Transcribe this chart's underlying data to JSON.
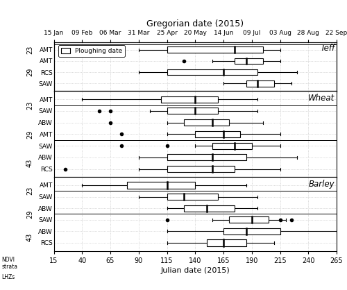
{
  "title_top": "Gregorian date (2015)",
  "xlabel": "Julian date (2015)",
  "xlim": [
    15,
    265
  ],
  "xticks": [
    15,
    40,
    65,
    90,
    115,
    140,
    165,
    190,
    215,
    240,
    265
  ],
  "gregorian_labels": [
    "15 Jan",
    "09 Feb",
    "06 Mar",
    "31 Mar",
    "25 Apr",
    "20 May",
    "14 Jun",
    "09 Jul",
    "03 Aug",
    "28 Aug",
    "22 Sep"
  ],
  "sections": [
    {
      "label": "Teff",
      "rows": [
        {
          "strata": "29",
          "lhz": "SAW",
          "whislo": 165,
          "q1": 185,
          "med": 195,
          "q3": 210,
          "whishi": 225,
          "fliers": []
        },
        {
          "strata": "29",
          "lhz": "RCS",
          "whislo": 90,
          "q1": 115,
          "med": 165,
          "q3": 195,
          "whishi": 230,
          "fliers": []
        },
        {
          "strata": "29",
          "lhz": "AMT",
          "whislo": 155,
          "q1": 175,
          "med": 185,
          "q3": 200,
          "whishi": 215,
          "fliers": [
            130
          ]
        },
        {
          "strata": "23",
          "lhz": "AMT",
          "whislo": 90,
          "q1": 115,
          "med": 175,
          "q3": 200,
          "whishi": 215,
          "fliers": []
        }
      ]
    },
    {
      "label": "Wheat",
      "rows": [
        {
          "strata": "43",
          "lhz": "RCS",
          "whislo": 90,
          "q1": 115,
          "med": 155,
          "q3": 175,
          "whishi": 215,
          "fliers": [
            25
          ]
        },
        {
          "strata": "43",
          "lhz": "ABW",
          "whislo": 90,
          "q1": 115,
          "med": 155,
          "q3": 185,
          "whishi": 230,
          "fliers": []
        },
        {
          "strata": "29",
          "lhz": "SAW",
          "whislo": 140,
          "q1": 155,
          "med": 175,
          "q3": 190,
          "whishi": 215,
          "fliers": [
            75,
            115
          ]
        },
        {
          "strata": "29",
          "lhz": "AMT",
          "whislo": 115,
          "q1": 140,
          "med": 165,
          "q3": 180,
          "whishi": 215,
          "fliers": [
            75
          ]
        },
        {
          "strata": "29",
          "lhz": "ABW",
          "whislo": 115,
          "q1": 130,
          "med": 155,
          "q3": 170,
          "whishi": 200,
          "fliers": [
            65
          ]
        },
        {
          "strata": "23",
          "lhz": "SAW",
          "whislo": 100,
          "q1": 115,
          "med": 140,
          "q3": 160,
          "whishi": 195,
          "fliers": [
            55,
            65
          ]
        },
        {
          "strata": "23",
          "lhz": "AMT",
          "whislo": 40,
          "q1": 110,
          "med": 140,
          "q3": 160,
          "whishi": 195,
          "fliers": []
        }
      ]
    },
    {
      "label": "Barley",
      "rows": [
        {
          "strata": "43",
          "lhz": "RCS",
          "whislo": 115,
          "q1": 150,
          "med": 165,
          "q3": 185,
          "whishi": 210,
          "fliers": []
        },
        {
          "strata": "43",
          "lhz": "ABW",
          "whislo": 115,
          "q1": 165,
          "med": 185,
          "q3": 215,
          "whishi": 265,
          "fliers": []
        },
        {
          "strata": "29",
          "lhz": "SAW",
          "whislo": 155,
          "q1": 170,
          "med": 190,
          "q3": 205,
          "whishi": 220,
          "fliers": [
            115,
            215,
            225
          ]
        },
        {
          "strata": "29",
          "lhz": "ABW",
          "whislo": 115,
          "q1": 130,
          "med": 150,
          "q3": 175,
          "whishi": 195,
          "fliers": []
        },
        {
          "strata": "23",
          "lhz": "SAW",
          "whislo": 90,
          "q1": 115,
          "med": 130,
          "q3": 160,
          "whishi": 195,
          "fliers": []
        },
        {
          "strata": "23",
          "lhz": "AMT",
          "whislo": 40,
          "q1": 80,
          "med": 115,
          "q3": 140,
          "whishi": 185,
          "fliers": []
        }
      ]
    }
  ],
  "box_color": "white",
  "median_color": "black",
  "flier_color": "black",
  "grid_color": "#bbbbbb",
  "background_color": "white"
}
